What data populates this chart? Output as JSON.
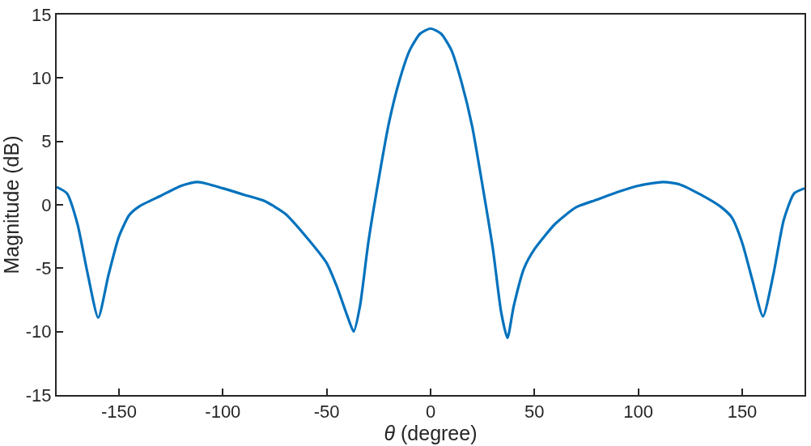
{
  "chart_data": {
    "type": "line",
    "xlabel": "θ (degree)",
    "ylabel": "Magnitude (dB)",
    "x": [
      -180,
      -175,
      -170,
      -165,
      -160,
      -155,
      -150,
      -145,
      -140,
      -130,
      -120,
      -112,
      -100,
      -90,
      -80,
      -70,
      -60,
      -50,
      -45,
      -40,
      -37,
      -34,
      -30,
      -25,
      -20,
      -15,
      -10,
      -5,
      0,
      5,
      10,
      15,
      20,
      25,
      30,
      34,
      37,
      40,
      45,
      50,
      60,
      70,
      80,
      90,
      100,
      112,
      120,
      130,
      140,
      145,
      150,
      155,
      160,
      165,
      170,
      175,
      180
    ],
    "series": [
      {
        "color": "#0072bd",
        "values": [
          1.4,
          0.9,
          -1.5,
          -5.5,
          -8.9,
          -5.5,
          -2.5,
          -0.8,
          -0.1,
          0.7,
          1.5,
          1.8,
          1.3,
          0.8,
          0.3,
          -0.7,
          -2.5,
          -4.6,
          -6.5,
          -8.8,
          -10.0,
          -8.0,
          -3.0,
          2.0,
          6.5,
          9.8,
          12.2,
          13.5,
          13.9,
          13.5,
          12.2,
          9.6,
          6.2,
          1.5,
          -3.5,
          -8.5,
          -10.5,
          -8.0,
          -5.0,
          -3.5,
          -1.5,
          -0.2,
          0.4,
          1.0,
          1.5,
          1.8,
          1.6,
          0.8,
          -0.2,
          -1.0,
          -3.0,
          -6.0,
          -8.8,
          -5.5,
          -1.2,
          0.9,
          1.3
        ]
      }
    ],
    "xlim": [
      -180,
      180
    ],
    "xticks": [
      -150,
      -100,
      -50,
      0,
      50,
      100,
      150
    ],
    "ylim": [
      -15,
      15
    ],
    "yticks": [
      -15,
      -10,
      -5,
      0,
      5,
      10,
      15
    ],
    "legend": false,
    "line_style": "solid",
    "marker": "none"
  }
}
